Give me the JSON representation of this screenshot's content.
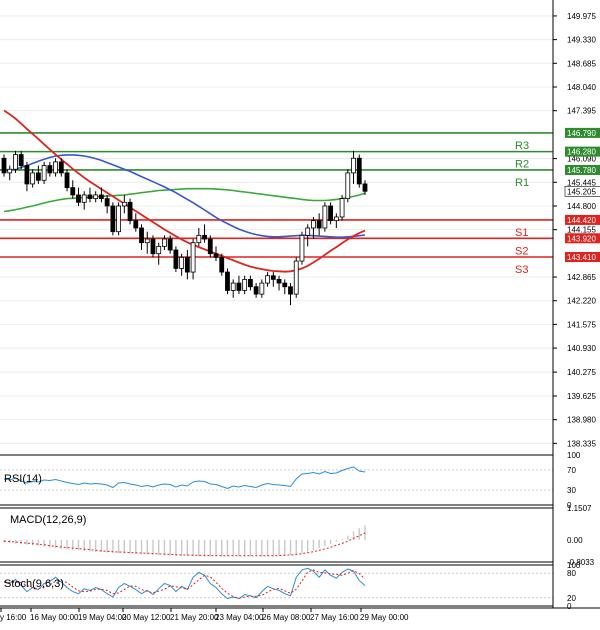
{
  "chart_data": {
    "type": "candlestick",
    "price_axis": {
      "ticks": [
        "149.975",
        "149.330",
        "148.685",
        "148.040",
        "147.395",
        "146.090",
        "145.445",
        "144.800",
        "144.155",
        "142.865",
        "142.220",
        "141.575",
        "140.930",
        "140.275",
        "139.625",
        "138.980",
        "138.335"
      ],
      "ylim": [
        138.1,
        150.3
      ]
    },
    "current_price": "145.205",
    "levels": [
      {
        "label": "R3",
        "value": 146.79,
        "price_text": "146.790",
        "color": "#2e8b2e"
      },
      {
        "label": "R2",
        "value": 146.28,
        "price_text": "146.280",
        "color": "#2e8b2e"
      },
      {
        "label": "R1",
        "value": 145.78,
        "price_text": "145.780",
        "color": "#2e8b2e"
      },
      {
        "label": "S1",
        "value": 144.42,
        "price_text": "144.420",
        "color": "#e0231f"
      },
      {
        "label": "S2",
        "value": 143.92,
        "price_text": "143.920",
        "color": "#e0231f"
      },
      {
        "label": "S3",
        "value": 143.41,
        "price_text": "143.410",
        "color": "#e0231f"
      }
    ],
    "x_labels": [
      "y 16:00",
      "16 May 00:00",
      "19 May 04:00",
      "20 May 12:00",
      "21 May 20:00",
      "23 May 04:00",
      "26 May 08:00",
      "27 May 16:00",
      "29 May 00:00"
    ],
    "candles": [
      [
        146.1,
        146.2,
        145.6,
        145.7
      ],
      [
        145.7,
        145.9,
        145.5,
        145.8
      ],
      [
        145.8,
        146.3,
        145.7,
        146.2
      ],
      [
        146.2,
        146.3,
        145.8,
        145.9
      ],
      [
        145.9,
        146.0,
        145.2,
        145.4
      ],
      [
        145.4,
        145.8,
        145.3,
        145.7
      ],
      [
        145.7,
        145.9,
        145.4,
        145.5
      ],
      [
        145.5,
        146.0,
        145.4,
        145.9
      ],
      [
        145.9,
        146.0,
        145.6,
        145.7
      ],
      [
        145.7,
        146.1,
        145.6,
        146.0
      ],
      [
        146.0,
        146.1,
        145.6,
        145.7
      ],
      [
        145.7,
        145.8,
        145.2,
        145.3
      ],
      [
        145.3,
        145.5,
        145.0,
        145.1
      ],
      [
        145.1,
        145.3,
        144.8,
        144.9
      ],
      [
        144.9,
        145.2,
        144.7,
        145.1
      ],
      [
        145.1,
        145.3,
        144.9,
        145.0
      ],
      [
        145.0,
        145.2,
        144.9,
        145.1
      ],
      [
        145.1,
        145.3,
        144.9,
        145.0
      ],
      [
        145.0,
        145.1,
        144.6,
        144.8
      ],
      [
        144.8,
        144.9,
        144.0,
        144.1
      ],
      [
        144.1,
        144.9,
        144.0,
        144.8
      ],
      [
        144.8,
        145.1,
        144.6,
        144.9
      ],
      [
        144.9,
        145.0,
        144.3,
        144.4
      ],
      [
        144.4,
        144.6,
        144.1,
        144.2
      ],
      [
        144.2,
        144.3,
        143.6,
        143.8
      ],
      [
        143.8,
        144.1,
        143.5,
        143.9
      ],
      [
        143.9,
        144.0,
        143.4,
        143.5
      ],
      [
        143.5,
        143.8,
        143.2,
        143.7
      ],
      [
        143.7,
        144.0,
        143.6,
        143.9
      ],
      [
        143.9,
        144.0,
        143.5,
        143.6
      ],
      [
        143.6,
        143.7,
        143.0,
        143.1
      ],
      [
        143.1,
        143.5,
        142.9,
        143.4
      ],
      [
        143.4,
        143.6,
        142.8,
        143.0
      ],
      [
        143.0,
        143.9,
        142.8,
        143.8
      ],
      [
        143.8,
        144.2,
        143.7,
        144.0
      ],
      [
        144.0,
        144.3,
        143.8,
        143.9
      ],
      [
        143.9,
        144.0,
        143.4,
        143.5
      ],
      [
        143.5,
        143.7,
        143.3,
        143.4
      ],
      [
        143.4,
        143.5,
        142.9,
        143.0
      ],
      [
        143.0,
        143.1,
        142.4,
        142.5
      ],
      [
        142.5,
        142.8,
        142.3,
        142.7
      ],
      [
        142.7,
        142.9,
        142.4,
        142.5
      ],
      [
        142.5,
        142.9,
        142.4,
        142.8
      ],
      [
        142.8,
        142.9,
        142.5,
        142.6
      ],
      [
        142.6,
        142.7,
        142.3,
        142.4
      ],
      [
        142.4,
        142.8,
        142.3,
        142.7
      ],
      [
        142.7,
        143.0,
        142.6,
        142.9
      ],
      [
        142.9,
        143.0,
        142.6,
        142.8
      ],
      [
        142.8,
        142.9,
        142.5,
        142.7
      ],
      [
        142.7,
        142.8,
        142.4,
        142.6
      ],
      [
        142.6,
        142.7,
        142.1,
        142.4
      ],
      [
        142.4,
        143.4,
        142.3,
        143.3
      ],
      [
        143.3,
        144.1,
        143.2,
        144.0
      ],
      [
        144.0,
        144.3,
        143.7,
        144.2
      ],
      [
        144.2,
        144.5,
        143.9,
        144.4
      ],
      [
        144.4,
        144.6,
        144.0,
        144.2
      ],
      [
        144.2,
        144.9,
        144.1,
        144.8
      ],
      [
        144.8,
        144.9,
        144.3,
        144.4
      ],
      [
        144.4,
        144.6,
        144.2,
        144.5
      ],
      [
        144.5,
        145.1,
        144.4,
        145.0
      ],
      [
        145.0,
        145.8,
        144.9,
        145.7
      ],
      [
        145.7,
        146.3,
        145.4,
        146.1
      ],
      [
        146.1,
        146.2,
        145.3,
        145.4
      ],
      [
        145.4,
        145.5,
        145.1,
        145.2
      ]
    ],
    "ma_blue": [
      145.75,
      145.77,
      145.8,
      145.85,
      145.9,
      145.96,
      146.02,
      146.07,
      146.12,
      146.16,
      146.18,
      146.19,
      146.19,
      146.18,
      146.16,
      146.13,
      146.09,
      146.04,
      145.98,
      145.92,
      145.86,
      145.8,
      145.74,
      145.67,
      145.6,
      145.53,
      145.46,
      145.39,
      145.32,
      145.24,
      145.16,
      145.07,
      144.98,
      144.89,
      144.79,
      144.69,
      144.59,
      144.49,
      144.4,
      144.32,
      144.24,
      144.17,
      144.11,
      144.06,
      144.02,
      143.99,
      143.97,
      143.96,
      143.96,
      143.97,
      143.98,
      143.99,
      144.0,
      144.0,
      143.99,
      143.98,
      143.97,
      143.96,
      143.95,
      143.95,
      143.96,
      143.97,
      143.99,
      144.01
    ],
    "ma_red": [
      147.4,
      147.3,
      147.18,
      147.04,
      146.9,
      146.76,
      146.62,
      146.48,
      146.34,
      146.2,
      146.07,
      145.94,
      145.81,
      145.69,
      145.57,
      145.46,
      145.36,
      145.26,
      145.16,
      145.06,
      144.96,
      144.86,
      144.76,
      144.66,
      144.56,
      144.46,
      144.36,
      144.26,
      144.16,
      144.07,
      143.98,
      143.89,
      143.81,
      143.74,
      143.68,
      143.62,
      143.56,
      143.5,
      143.44,
      143.38,
      143.32,
      143.26,
      143.2,
      143.15,
      143.11,
      143.08,
      143.05,
      143.03,
      143.02,
      143.01,
      143.02,
      143.05,
      143.1,
      143.17,
      143.26,
      143.36,
      143.47,
      143.58,
      143.68,
      143.79,
      143.89,
      143.98,
      144.06,
      144.13
    ],
    "ma_green": [
      144.65,
      144.67,
      144.7,
      144.73,
      144.77,
      144.8,
      144.84,
      144.88,
      144.92,
      144.95,
      144.98,
      145.0,
      145.01,
      145.02,
      145.03,
      145.04,
      145.05,
      145.06,
      145.07,
      145.08,
      145.09,
      145.1,
      145.12,
      145.14,
      145.16,
      145.18,
      145.2,
      145.22,
      145.23,
      145.24,
      145.25,
      145.26,
      145.27,
      145.27,
      145.27,
      145.27,
      145.27,
      145.26,
      145.25,
      145.24,
      145.22,
      145.2,
      145.18,
      145.16,
      145.14,
      145.12,
      145.1,
      145.08,
      145.06,
      145.04,
      145.02,
      145.0,
      144.98,
      144.96,
      144.95,
      144.95,
      144.95,
      144.96,
      144.98,
      145.0,
      145.03,
      145.06,
      145.1,
      145.15
    ],
    "rsi": {
      "label": "RSI(14)",
      "ticks": [
        "100",
        "70",
        "30",
        "0"
      ],
      "values": [
        52,
        50,
        54,
        48,
        44,
        47,
        46,
        50,
        49,
        51,
        48,
        45,
        43,
        41,
        44,
        42,
        43,
        42,
        40,
        35,
        44,
        45,
        42,
        40,
        37,
        39,
        36,
        40,
        42,
        41,
        36,
        40,
        38,
        46,
        48,
        47,
        42,
        41,
        37,
        33,
        38,
        36,
        39,
        37,
        35,
        40,
        43,
        41,
        40,
        39,
        37,
        52,
        62,
        63,
        65,
        62,
        67,
        63,
        64,
        69,
        73,
        76,
        68,
        66
      ]
    },
    "macd": {
      "label": "MACD(12,26,9)",
      "ticks": [
        "1.1507",
        "0.00",
        "-0.8033"
      ],
      "hist": [
        -0.1,
        -0.12,
        -0.14,
        -0.16,
        -0.18,
        -0.2,
        -0.22,
        -0.25,
        -0.28,
        -0.3,
        -0.32,
        -0.34,
        -0.36,
        -0.38,
        -0.4,
        -0.42,
        -0.44,
        -0.45,
        -0.46,
        -0.47,
        -0.48,
        -0.49,
        -0.5,
        -0.51,
        -0.52,
        -0.53,
        -0.54,
        -0.55,
        -0.56,
        -0.57,
        -0.58,
        -0.58,
        -0.59,
        -0.59,
        -0.6,
        -0.6,
        -0.6,
        -0.6,
        -0.6,
        -0.6,
        -0.6,
        -0.6,
        -0.6,
        -0.6,
        -0.6,
        -0.6,
        -0.6,
        -0.59,
        -0.58,
        -0.57,
        -0.55,
        -0.52,
        -0.48,
        -0.43,
        -0.37,
        -0.3,
        -0.23,
        -0.15,
        -0.06,
        0.03,
        0.15,
        0.3,
        0.42,
        0.52
      ],
      "signal": [
        -0.05,
        -0.06,
        -0.08,
        -0.1,
        -0.12,
        -0.14,
        -0.16,
        -0.18,
        -0.21,
        -0.24,
        -0.26,
        -0.28,
        -0.3,
        -0.32,
        -0.34,
        -0.36,
        -0.38,
        -0.4,
        -0.42,
        -0.43,
        -0.44,
        -0.45,
        -0.46,
        -0.47,
        -0.48,
        -0.49,
        -0.5,
        -0.51,
        -0.52,
        -0.53,
        -0.54,
        -0.55,
        -0.55,
        -0.56,
        -0.56,
        -0.57,
        -0.57,
        -0.57,
        -0.58,
        -0.58,
        -0.58,
        -0.58,
        -0.58,
        -0.58,
        -0.58,
        -0.58,
        -0.58,
        -0.58,
        -0.57,
        -0.56,
        -0.55,
        -0.53,
        -0.5,
        -0.47,
        -0.43,
        -0.38,
        -0.33,
        -0.27,
        -0.2,
        -0.13,
        -0.05,
        0.05,
        0.15,
        0.25
      ]
    },
    "stoch": {
      "label": "Stoch(9,6,3)",
      "ticks": [
        "100",
        "80",
        "20",
        "0"
      ],
      "k": [
        60,
        55,
        65,
        50,
        35,
        45,
        40,
        55,
        60,
        70,
        58,
        45,
        35,
        30,
        42,
        38,
        45,
        40,
        30,
        22,
        45,
        55,
        48,
        40,
        30,
        38,
        28,
        42,
        55,
        50,
        35,
        48,
        40,
        70,
        82,
        75,
        55,
        45,
        30,
        18,
        22,
        18,
        28,
        25,
        20,
        35,
        48,
        42,
        38,
        30,
        25,
        70,
        88,
        92,
        85,
        70,
        88,
        75,
        68,
        82,
        90,
        85,
        62,
        50
      ],
      "d": [
        58,
        57,
        58,
        57,
        50,
        45,
        42,
        46,
        52,
        60,
        62,
        57,
        46,
        37,
        35,
        36,
        41,
        41,
        38,
        30,
        32,
        40,
        49,
        48,
        40,
        36,
        32,
        36,
        41,
        49,
        47,
        44,
        41,
        52,
        64,
        75,
        71,
        58,
        43,
        31,
        23,
        19,
        22,
        24,
        24,
        26,
        34,
        41,
        43,
        37,
        31,
        41,
        61,
        83,
        88,
        82,
        81,
        78,
        77,
        75,
        80,
        86,
        79,
        66
      ]
    }
  }
}
